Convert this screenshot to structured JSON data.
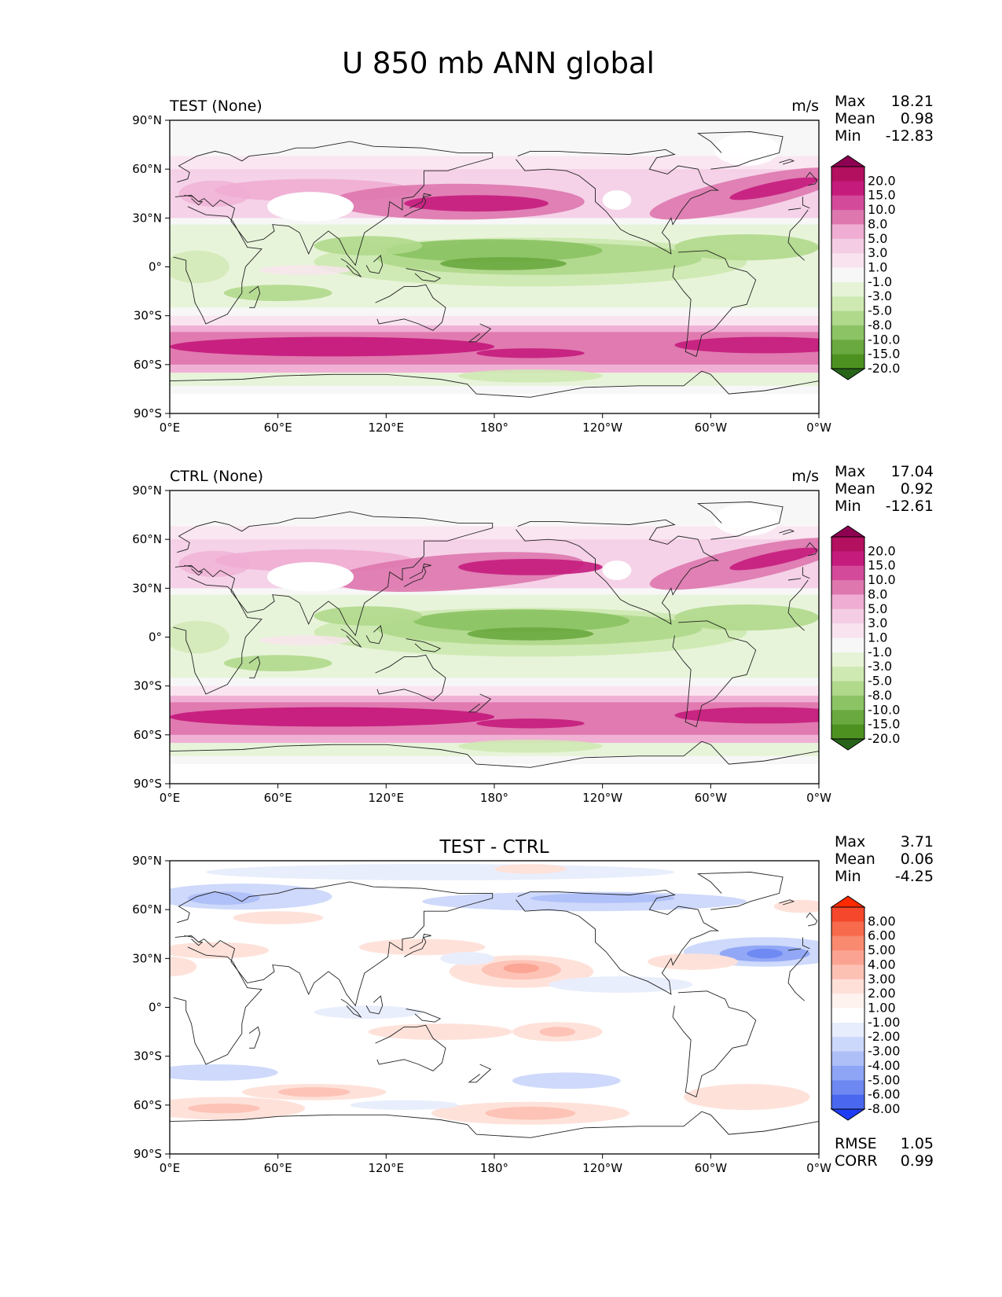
{
  "figure_title": "U 850 mb ANN global",
  "lat_ticks": [
    "90°N",
    "60°N",
    "30°N",
    "0°",
    "30°S",
    "60°S",
    "90°S"
  ],
  "lon_ticks": [
    "0°E",
    "60°E",
    "120°E",
    "180°",
    "120°W",
    "60°W",
    "0°W"
  ],
  "panels": [
    {
      "id": "test",
      "left_title": "TEST (None)",
      "center_title": "",
      "units": "m/s",
      "stats": [
        {
          "label": "Max",
          "value": "18.21"
        },
        {
          "label": "Mean",
          "value": "0.98"
        },
        {
          "label": "Min",
          "value": "-12.83"
        }
      ],
      "colorbar": {
        "labels": [
          "20.0",
          "15.0",
          "10.0",
          "8.0",
          "5.0",
          "3.0",
          "1.0",
          "-1.0",
          "-3.0",
          "-5.0",
          "-8.0",
          "-10.0",
          "-15.0",
          "-20.0"
        ],
        "colors": [
          "#8e0152",
          "#b3105f",
          "#c51b7d",
          "#d44a9a",
          "#de77ae",
          "#efadd3",
          "#f4cde5",
          "#f9e3ef",
          "#f7f7f7",
          "#e6f3d6",
          "#cfe9b3",
          "#b0d98c",
          "#8cc465",
          "#6aa93f",
          "#4d9221",
          "#276419"
        ],
        "extend": "both"
      },
      "extra_stats": []
    },
    {
      "id": "ctrl",
      "left_title": "CTRL (None)",
      "center_title": "",
      "units": "m/s",
      "stats": [
        {
          "label": "Max",
          "value": "17.04"
        },
        {
          "label": "Mean",
          "value": "0.92"
        },
        {
          "label": "Min",
          "value": "-12.61"
        }
      ],
      "colorbar": {
        "labels": [
          "20.0",
          "15.0",
          "10.0",
          "8.0",
          "5.0",
          "3.0",
          "1.0",
          "-1.0",
          "-3.0",
          "-5.0",
          "-8.0",
          "-10.0",
          "-15.0",
          "-20.0"
        ],
        "colors": [
          "#8e0152",
          "#b3105f",
          "#c51b7d",
          "#d44a9a",
          "#de77ae",
          "#efadd3",
          "#f4cde5",
          "#f9e3ef",
          "#f7f7f7",
          "#e6f3d6",
          "#cfe9b3",
          "#b0d98c",
          "#8cc465",
          "#6aa93f",
          "#4d9221",
          "#276419"
        ],
        "extend": "both"
      },
      "extra_stats": []
    },
    {
      "id": "diff",
      "left_title": "",
      "center_title": "TEST - CTRL",
      "units": "",
      "stats": [
        {
          "label": "Max",
          "value": "3.71"
        },
        {
          "label": "Mean",
          "value": "0.06"
        },
        {
          "label": "Min",
          "value": "-4.25"
        }
      ],
      "colorbar": {
        "labels": [
          "8.00",
          "6.00",
          "5.00",
          "4.00",
          "3.00",
          "2.00",
          "1.00",
          "-1.00",
          "-2.00",
          "-3.00",
          "-4.00",
          "-5.00",
          "-6.00",
          "-8.00"
        ],
        "colors": [
          "#ff2a00",
          "#f5472c",
          "#f76a4c",
          "#f98a6f",
          "#fba392",
          "#fdc1b4",
          "#fee0d8",
          "#fff3ef",
          "#ffffff",
          "#e8edfd",
          "#cbd7fb",
          "#aebff8",
          "#8ea5f5",
          "#6e88f2",
          "#4a68ef",
          "#1e3cf5"
        ],
        "extend": "both"
      },
      "extra_stats": [
        {
          "label": "RMSE",
          "value": "1.05"
        },
        {
          "label": "CORR",
          "value": "0.99"
        }
      ]
    }
  ]
}
